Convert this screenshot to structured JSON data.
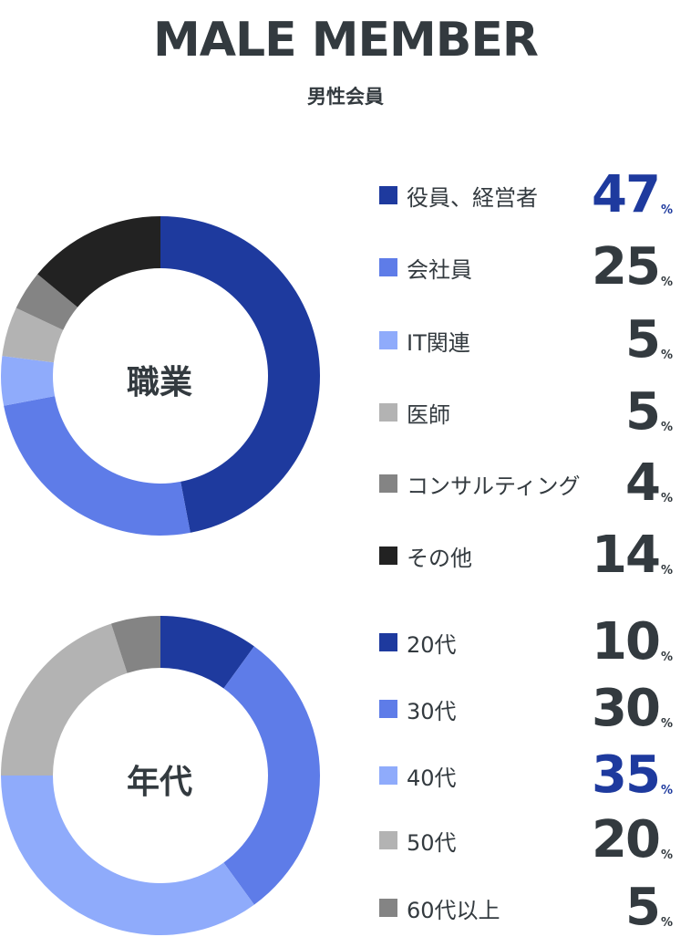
{
  "header": {
    "title": "MALE MEMBER",
    "subtitle": "男性会員"
  },
  "percent_sign": "%",
  "highlight_color": "#1e3a9e",
  "text_color": "#333a3f",
  "chart_data": [
    {
      "type": "pie",
      "title": "職業",
      "categories": [
        "役員、経営者",
        "会社員",
        "IT関連",
        "医師",
        "コンサルティング",
        "その他"
      ],
      "values": [
        47,
        25,
        5,
        5,
        4,
        14
      ],
      "value_labels": [
        "47",
        "25",
        "5",
        "5",
        "4",
        "14"
      ],
      "colors": [
        "#1e3a9e",
        "#5e7ce8",
        "#8fabfb",
        "#b3b3b3",
        "#848484",
        "#222222"
      ],
      "highlight_index": 0
    },
    {
      "type": "pie",
      "title": "年代",
      "categories": [
        "20代",
        "30代",
        "40代",
        "50代",
        "60代以上"
      ],
      "values": [
        10,
        30,
        35,
        20,
        5
      ],
      "value_labels": [
        "10",
        "30",
        "35",
        "20",
        "5"
      ],
      "colors": [
        "#1e3a9e",
        "#5e7ce8",
        "#8fabfb",
        "#b3b3b3",
        "#848484"
      ],
      "highlight_index": 2
    }
  ]
}
